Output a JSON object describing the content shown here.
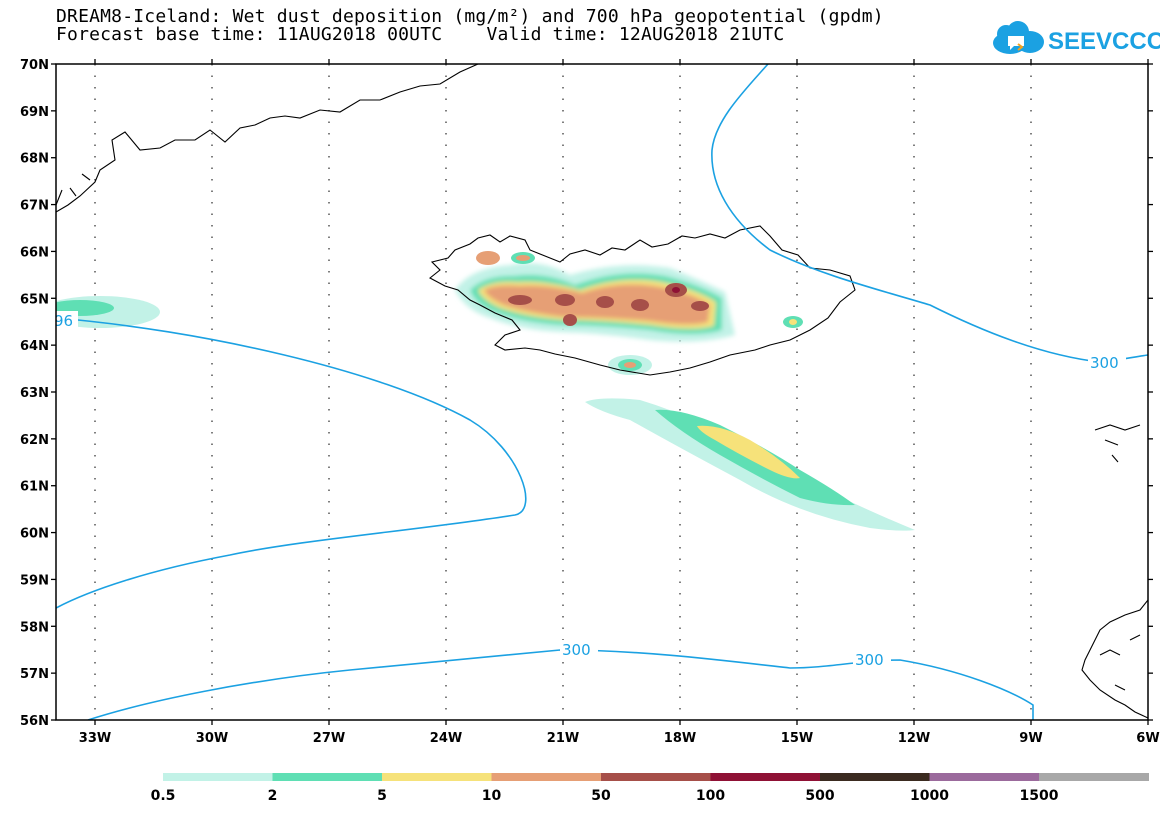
{
  "header": {
    "title_line1": "DREAM8-Iceland: Wet dust deposition (mg/m²) and 700 hPa geopotential (gpdm)",
    "title_line2": "Forecast base time: 11AUG2018 00UTC    Valid time: 12AUG2018 21UTC"
  },
  "logo": {
    "text": "SEEVCCC",
    "icon": "cloud-icon",
    "color": "#1ba1e2"
  },
  "map": {
    "lat_labels": [
      "70N",
      "69N",
      "68N",
      "67N",
      "66N",
      "65N",
      "64N",
      "63N",
      "62N",
      "61N",
      "60N",
      "59N",
      "58N",
      "57N",
      "56N"
    ],
    "lon_labels": [
      "33W",
      "30W",
      "27W",
      "24W",
      "21W",
      "18W",
      "15W",
      "12W",
      "9W",
      "6W"
    ],
    "contour_labels": [
      "96",
      "300",
      "300",
      "300"
    ],
    "contour_color": "#1ba1e2"
  },
  "colorbar": {
    "labels": [
      "0.5",
      "2",
      "5",
      "10",
      "50",
      "100",
      "500",
      "1000",
      "1500"
    ],
    "colors": [
      "#c2f2e7",
      "#5fdfb4",
      "#f6e27a",
      "#e69f75",
      "#a64f49",
      "#8f1135",
      "#3b2b20",
      "#9b6a9c",
      "#a8a8a8"
    ]
  }
}
